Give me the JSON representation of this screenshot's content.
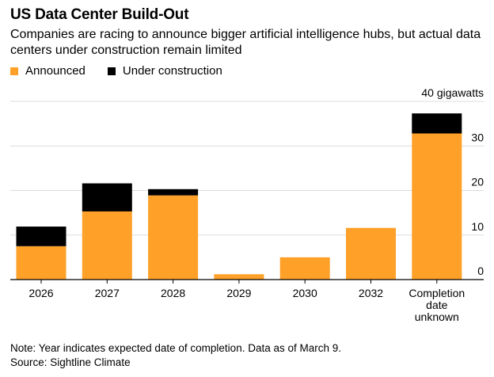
{
  "header": {
    "title": "US Data Center Build-Out",
    "subtitle": "Companies are racing to announce bigger artificial intelligence hubs, but actual data centers under construction remain limited"
  },
  "legend": [
    {
      "label": "Announced",
      "color": "#ffa028"
    },
    {
      "label": "Under construction",
      "color": "#000000"
    }
  ],
  "footer": {
    "note": "Note: Year indicates expected date of completion. Data as of March 9.",
    "source": "Source: Sightline Climate"
  },
  "chart_data": {
    "type": "bar",
    "stacked": true,
    "categories": [
      "2026",
      "2027",
      "2028",
      "2029",
      "2030",
      "2032",
      "Completion date unknown"
    ],
    "category_lines": [
      [
        "2026"
      ],
      [
        "2027"
      ],
      [
        "2028"
      ],
      [
        "2029"
      ],
      [
        "2030"
      ],
      [
        "2032"
      ],
      [
        "Completion",
        "date",
        "unknown"
      ]
    ],
    "series": [
      {
        "name": "Announced",
        "color": "#ffa028",
        "values": [
          7.5,
          15.3,
          18.9,
          1.2,
          5.0,
          11.6,
          32.8
        ]
      },
      {
        "name": "Under construction",
        "color": "#000000",
        "values": [
          4.4,
          6.3,
          1.4,
          0,
          0,
          0,
          4.5
        ]
      }
    ],
    "ylim": [
      0,
      40
    ],
    "yticks": [
      0,
      10,
      20,
      30,
      40
    ],
    "ytick_labels": [
      "0",
      "10",
      "20",
      "30",
      "40 gigawatts"
    ],
    "grid": true
  }
}
